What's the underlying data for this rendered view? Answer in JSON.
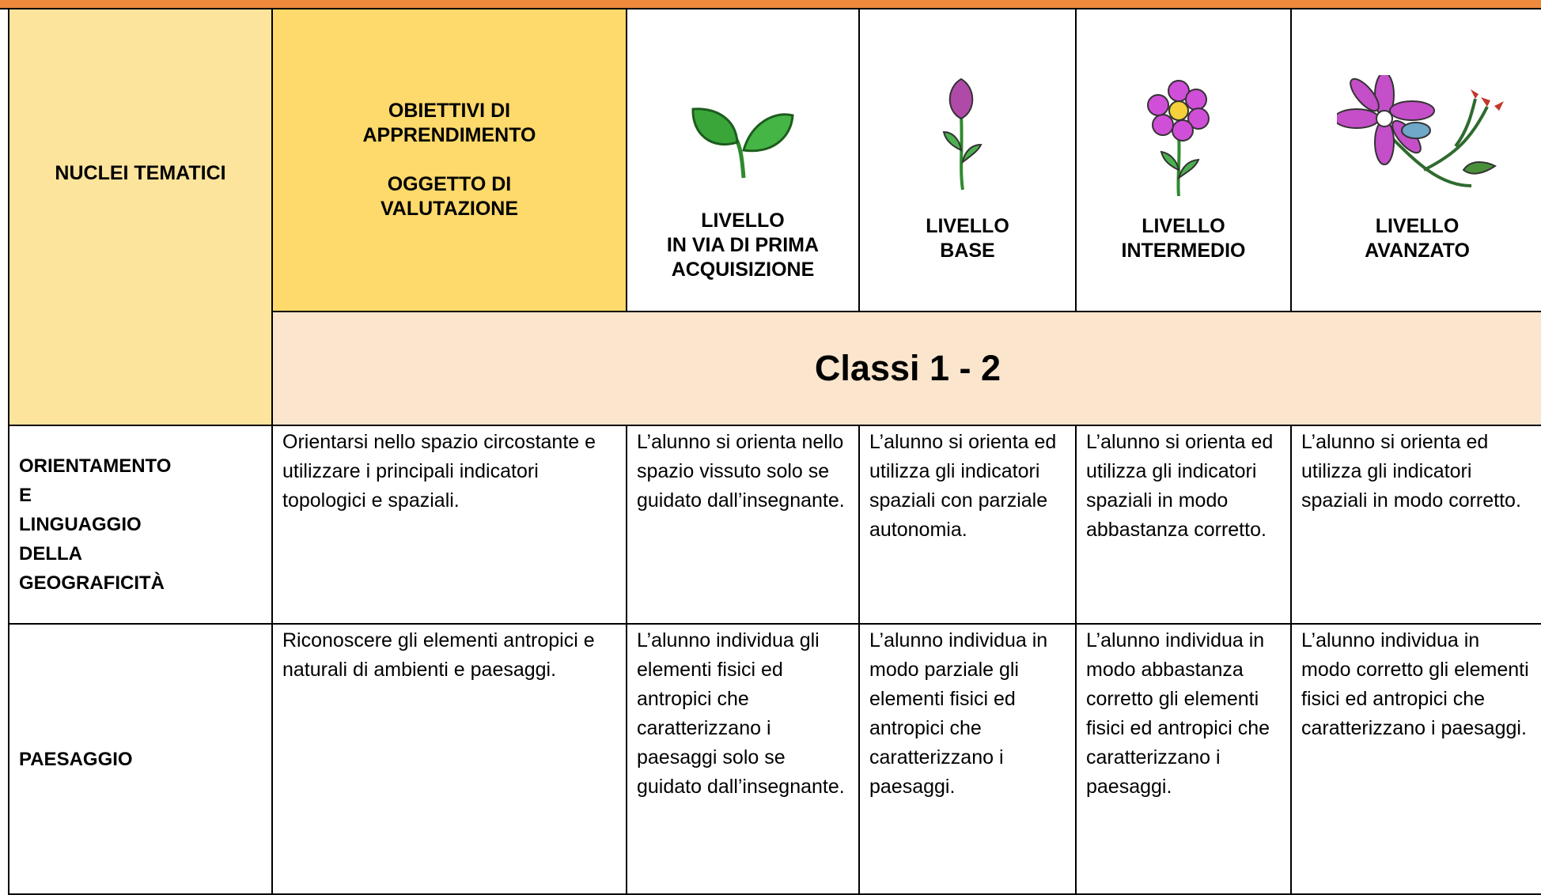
{
  "table": {
    "header": {
      "nuclei": "NUCLEI TEMATICI",
      "obiettivi": "OBIETTIVI DI\nAPPRENDIMENTO\n\nOGGETTO DI\nVALUTAZIONE",
      "levels": [
        "LIVELLO\nIN VIA DI PRIMA\nACQUISIZIONE",
        "LIVELLO\nBASE",
        "LIVELLO\nINTERMEDIO",
        "LIVELLO\nAVANZATO"
      ]
    },
    "classi": "Classi 1 - 2",
    "rows": [
      [
        "ORIENTAMENTO\nE\nLINGUAGGIO\nDELLA\nGEOGRAFICITÀ",
        "Orientarsi nello spazio circostante e utilizzare i principali indicatori topologici e spaziali.",
        "L’alunno si orienta nello spazio vissuto solo se guidato dall’insegnante.",
        "L’alunno si orienta ed utilizza gli indicatori spaziali con parziale autonomia.",
        "L’alunno si orienta ed utilizza gli indicatori spaziali in modo abbastanza corretto.",
        "L’alunno si orienta ed utilizza gli indicatori spaziali in modo corretto."
      ],
      [
        "PAESAGGIO",
        "Riconoscere gli elementi antropici e naturali di ambienti e paesaggi.",
        "L’alunno individua gli elementi fisici ed antropici che caratterizzano i paesaggi solo se guidato dall’insegnante.",
        "L’alunno individua in modo parziale gli elementi fisici ed antropici che caratterizzano i paesaggi.",
        "L’alunno individua in modo abbastanza corretto gli elementi fisici ed antropici che caratterizzano i paesaggi.",
        "L’alunno individua in modo corretto gli elementi fisici ed antropici che caratterizzano i paesaggi."
      ]
    ]
  }
}
